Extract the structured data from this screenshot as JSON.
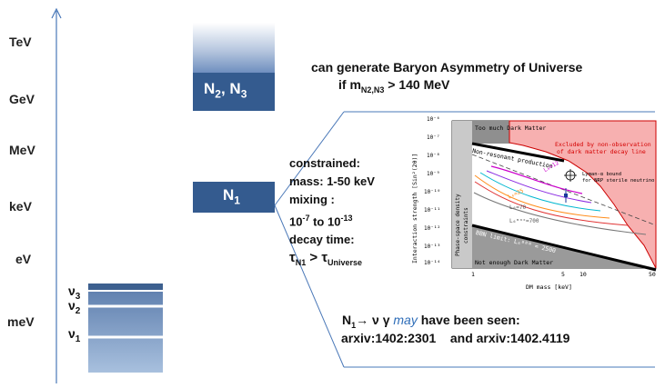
{
  "axis": {
    "scale_labels": [
      "TeV",
      "GeV",
      "MeV",
      "keV",
      "eV",
      "meV"
    ]
  },
  "neutrinos": {
    "nu3": {
      "base": "ν",
      "sub": "3"
    },
    "nu2": {
      "base": "ν",
      "sub": "2"
    },
    "nu1": {
      "base": "ν",
      "sub": "1"
    }
  },
  "heavy": {
    "label_base": "N",
    "n23_sub1": "2",
    "n23_sep": ", N",
    "n23_sub2": "3",
    "n1_sub": "1"
  },
  "baryon": {
    "line1": "can generate Baryon Asymmetry of Universe",
    "line2_pre": "if m",
    "line2_sub": "N2,N3",
    "line2_post": " > 140 MeV"
  },
  "constraints": {
    "line1": "constrained:",
    "line2": "mass: 1-50 keV",
    "line3": "mixing :",
    "line4_a": "10",
    "line4_exp1": "-7",
    "line4_b": " to 10",
    "line4_exp2": "-13",
    "line5": "decay time:",
    "tau1": "τ",
    "tau1_sub": "N1",
    "gt": " > ",
    "tau2": "τ",
    "tau2_sub": "Universe"
  },
  "decay": {
    "n": "N",
    "n_sub": "1",
    "arrow": "→",
    "rest": " ν γ ",
    "may": "may",
    "rest2": " have been seen:",
    "line2": "arxiv:1402:2301    and arxiv:1402.4119"
  },
  "plot": {
    "top_left": "Too much Dark Matter",
    "excluded_1": "Excluded by non-observation",
    "excluded_2": "of dark matter decay line",
    "nonres": "Non-resonant production",
    "lyman_1": "Lyman-α bound",
    "lyman_2": "for NRP sterile neutrino",
    "phase_1": "Phase-space density",
    "phase_2": "constraints",
    "bbn": "BBN limit: L₆ᴮᴮᴺ = 2500",
    "bottom": "Not enough Dark Matter",
    "ylabel": "Interaction strength [Sin²(2θ)]",
    "xlabel": "DM mass [keV]",
    "curve_labels": [
      "L₆=12",
      "L₆=25",
      "L₆=70",
      "L₆ᵐᵃˣ=700"
    ],
    "yticks": [
      "10⁻⁶",
      "10⁻⁷",
      "10⁻⁸",
      "10⁻⁹",
      "10⁻¹⁰",
      "10⁻¹¹",
      "10⁻¹²",
      "10⁻¹³",
      "10⁻¹⁴"
    ],
    "xticks": [
      "1",
      "5",
      "10",
      "50"
    ]
  },
  "colors": {
    "accent_blue": "#2e5a9a",
    "box_dark": "#345b8f",
    "excluded_red": "#f7b0b0"
  }
}
